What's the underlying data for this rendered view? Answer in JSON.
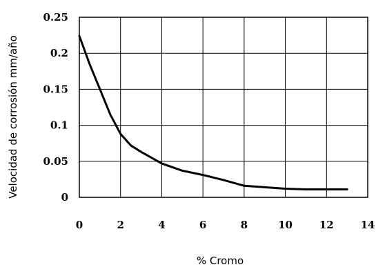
{
  "chart_data": {
    "type": "line",
    "title": "",
    "xlabel": "% Cromo",
    "ylabel": "Velocidad de corrosión mm/año",
    "xlim": [
      0,
      14
    ],
    "ylim": [
      0,
      0.25
    ],
    "xticks": [
      0,
      2,
      4,
      6,
      8,
      10,
      12,
      14
    ],
    "yticks": [
      0,
      0.05,
      0.1,
      0.15,
      0.2,
      0.25
    ],
    "xtick_labels": [
      "0",
      "2",
      "4",
      "6",
      "8",
      "10",
      "12",
      "14"
    ],
    "ytick_labels": [
      "0",
      "0.05",
      "0.1",
      "0.15",
      "0.2",
      "0.25"
    ],
    "grid": true,
    "series": [
      {
        "x": [
          0,
          0.5,
          1,
          1.5,
          2,
          2.5,
          3,
          4,
          5,
          6,
          7,
          8,
          9,
          10,
          11,
          12,
          13
        ],
        "y": [
          0.224,
          0.185,
          0.15,
          0.115,
          0.088,
          0.072,
          0.063,
          0.047,
          0.037,
          0.031,
          0.024,
          0.016,
          0.014,
          0.012,
          0.011,
          0.011,
          0.011
        ]
      }
    ]
  }
}
